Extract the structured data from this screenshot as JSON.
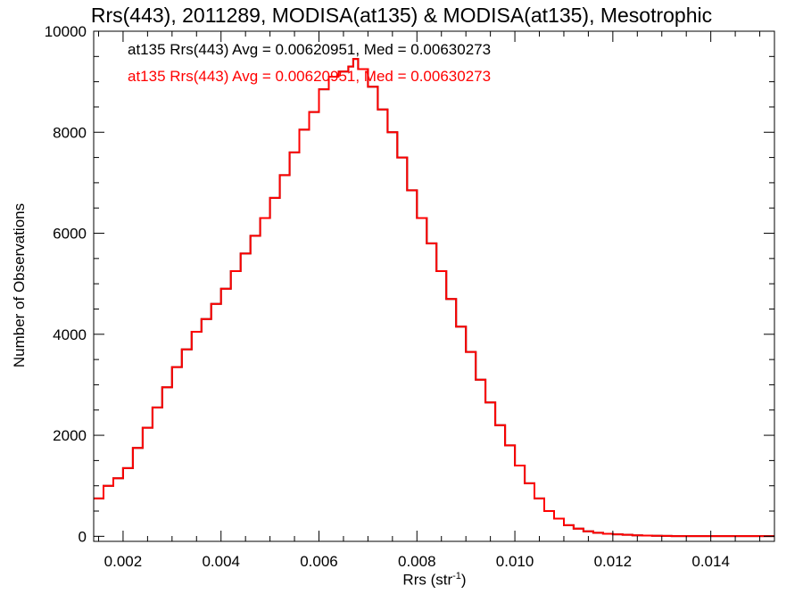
{
  "chart_data": {
    "type": "line",
    "title": "Rrs(443), 2011289, MODISA(at135) & MODISA(at135), Mesotrophic",
    "xlabel": {
      "base": "Rrs (str",
      "sup": "-1",
      "tail": ")"
    },
    "ylabel": "Number of Observations",
    "xlim": [
      0.0014,
      0.0153
    ],
    "ylim": [
      -100,
      10000
    ],
    "x_ticks": [
      "0.002",
      "0.004",
      "0.006",
      "0.008",
      "0.010",
      "0.012",
      "0.014"
    ],
    "y_ticks": [
      "0",
      "2000",
      "4000",
      "6000",
      "8000",
      "10000"
    ],
    "grid": false,
    "legend": "top-left",
    "annotations": [
      {
        "text": "at135 Rrs(443) Avg = 0.00620951, Med = 0.00630273",
        "color": "#000000"
      },
      {
        "text": "at135 Rrs(443) Avg = 0.00620951, Med = 0.00630273",
        "color": "#ff0000"
      }
    ],
    "series": [
      {
        "color": "#000000",
        "x": [
          0.0014,
          0.0016,
          0.0018,
          0.002,
          0.0022,
          0.0024,
          0.0026,
          0.0028,
          0.003,
          0.0032,
          0.0034,
          0.0036,
          0.0038,
          0.004,
          0.0042,
          0.0044,
          0.0046,
          0.0048,
          0.005,
          0.0052,
          0.0054,
          0.0056,
          0.0058,
          0.006,
          0.0062,
          0.0064,
          0.0066,
          0.0067,
          0.0068,
          0.007,
          0.0072,
          0.0074,
          0.0076,
          0.0078,
          0.008,
          0.0082,
          0.0084,
          0.0086,
          0.0088,
          0.009,
          0.0092,
          0.0094,
          0.0096,
          0.0098,
          0.01,
          0.0102,
          0.0104,
          0.0106,
          0.0108,
          0.011,
          0.0112,
          0.0114,
          0.0116,
          0.0118,
          0.012,
          0.0122,
          0.0124,
          0.0126,
          0.0128,
          0.013,
          0.0132,
          0.0134,
          0.0136,
          0.0138,
          0.014,
          0.0142,
          0.0144,
          0.0146,
          0.0148,
          0.015,
          0.0153
        ],
        "y": [
          750,
          1000,
          1150,
          1350,
          1750,
          2150,
          2550,
          2950,
          3350,
          3700,
          4050,
          4300,
          4600,
          4900,
          5250,
          5600,
          5950,
          6300,
          6700,
          7150,
          7600,
          8050,
          8400,
          8850,
          9100,
          9200,
          9300,
          9450,
          9250,
          8900,
          8450,
          8000,
          7500,
          6850,
          6300,
          5800,
          5250,
          4700,
          4150,
          3650,
          3100,
          2650,
          2200,
          1800,
          1400,
          1050,
          750,
          500,
          350,
          220,
          150,
          100,
          70,
          50,
          40,
          30,
          20,
          15,
          10,
          8,
          5,
          5,
          5,
          5,
          5,
          5,
          5,
          5,
          5,
          5,
          5
        ]
      },
      {
        "color": "#ff0000",
        "x": [
          0.0014,
          0.0016,
          0.0018,
          0.002,
          0.0022,
          0.0024,
          0.0026,
          0.0028,
          0.003,
          0.0032,
          0.0034,
          0.0036,
          0.0038,
          0.004,
          0.0042,
          0.0044,
          0.0046,
          0.0048,
          0.005,
          0.0052,
          0.0054,
          0.0056,
          0.0058,
          0.006,
          0.0062,
          0.0064,
          0.0066,
          0.0067,
          0.0068,
          0.007,
          0.0072,
          0.0074,
          0.0076,
          0.0078,
          0.008,
          0.0082,
          0.0084,
          0.0086,
          0.0088,
          0.009,
          0.0092,
          0.0094,
          0.0096,
          0.0098,
          0.01,
          0.0102,
          0.0104,
          0.0106,
          0.0108,
          0.011,
          0.0112,
          0.0114,
          0.0116,
          0.0118,
          0.012,
          0.0122,
          0.0124,
          0.0126,
          0.0128,
          0.013,
          0.0132,
          0.0134,
          0.0136,
          0.0138,
          0.014,
          0.0142,
          0.0144,
          0.0146,
          0.0148,
          0.015,
          0.0153
        ],
        "y": [
          750,
          1000,
          1150,
          1350,
          1750,
          2150,
          2550,
          2950,
          3350,
          3700,
          4050,
          4300,
          4600,
          4900,
          5250,
          5600,
          5950,
          6300,
          6700,
          7150,
          7600,
          8050,
          8400,
          8850,
          9100,
          9200,
          9300,
          9450,
          9250,
          8900,
          8450,
          8000,
          7500,
          6850,
          6300,
          5800,
          5250,
          4700,
          4150,
          3650,
          3100,
          2650,
          2200,
          1800,
          1400,
          1050,
          750,
          500,
          350,
          220,
          150,
          100,
          70,
          50,
          40,
          30,
          20,
          15,
          10,
          8,
          5,
          5,
          5,
          5,
          5,
          5,
          5,
          5,
          5,
          5,
          5
        ]
      }
    ]
  }
}
